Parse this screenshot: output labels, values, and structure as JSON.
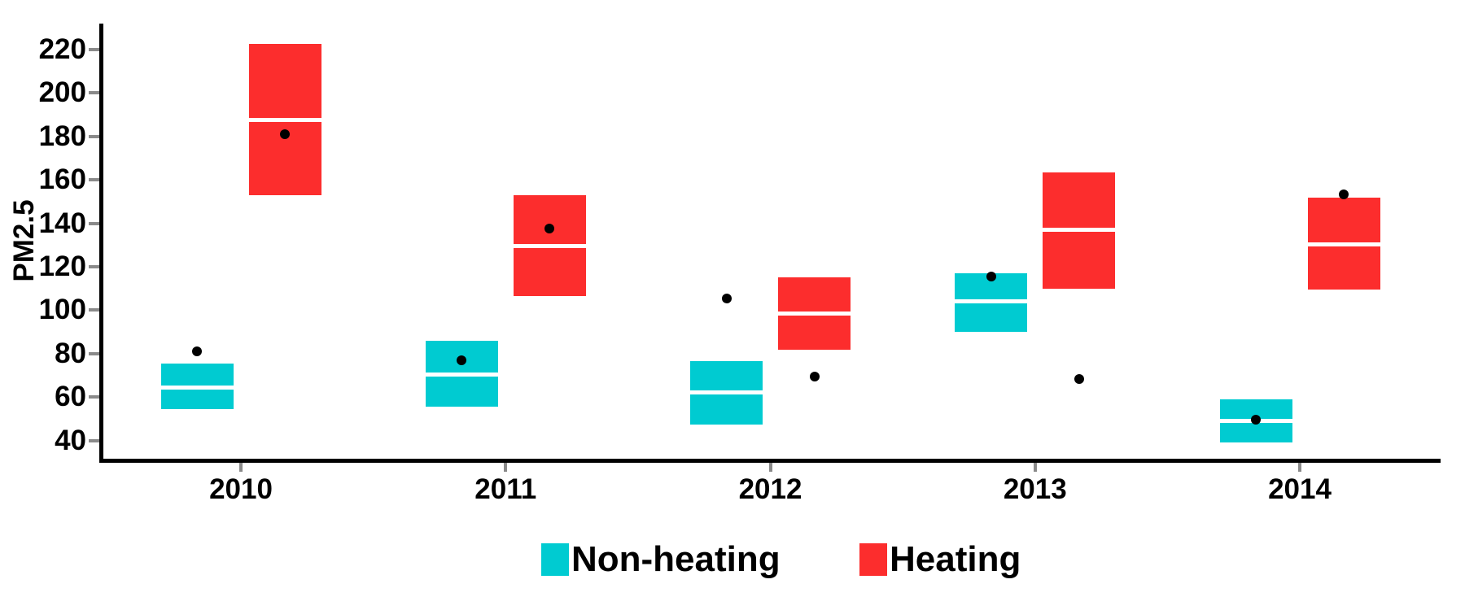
{
  "chart_data": {
    "type": "crossbar",
    "title": "",
    "xlabel": "",
    "ylabel": "PM2.5",
    "categories": [
      "2010",
      "2011",
      "2012",
      "2013",
      "2014"
    ],
    "y_ticks": [
      40,
      60,
      80,
      100,
      120,
      140,
      160,
      180,
      200,
      220
    ],
    "ylim": [
      35,
      228
    ],
    "grid": false,
    "legend_position": "bottom-center",
    "series": [
      {
        "name": "Non-heating",
        "color": "#00CBD1",
        "boxes": [
          {
            "category": "2010",
            "ymin": 54.5,
            "middle": 64.5,
            "ymax": 75.5,
            "point": 81
          },
          {
            "category": "2011",
            "ymin": 55.5,
            "middle": 70.5,
            "ymax": 86,
            "point": 77
          },
          {
            "category": "2012",
            "ymin": 47.5,
            "middle": 62,
            "ymax": 76.5,
            "point": 105.5
          },
          {
            "category": "2013",
            "ymin": 90,
            "middle": 104,
            "ymax": 117,
            "point": 115.5
          },
          {
            "category": "2014",
            "ymin": 39,
            "middle": 49,
            "ymax": 59,
            "point": 49.5
          }
        ]
      },
      {
        "name": "Heating",
        "color": "#FC2D2D",
        "boxes": [
          {
            "category": "2010",
            "ymin": 153,
            "middle": 187.5,
            "ymax": 222.5,
            "point": 181
          },
          {
            "category": "2011",
            "ymin": 106.5,
            "middle": 129.5,
            "ymax": 153,
            "point": 137.5
          },
          {
            "category": "2012",
            "ymin": 82,
            "middle": 98.5,
            "ymax": 115,
            "point": 69.5
          },
          {
            "category": "2013",
            "ymin": 110,
            "middle": 137,
            "ymax": 163.5,
            "point": 68.5
          },
          {
            "category": "2014",
            "ymin": 109.5,
            "middle": 130.5,
            "ymax": 152,
            "point": 153.5
          }
        ]
      }
    ],
    "colors": {
      "axis": "#000000",
      "tick": "#8a8a8a",
      "median_line": "#ffffff",
      "point_dot": "#000000"
    }
  }
}
